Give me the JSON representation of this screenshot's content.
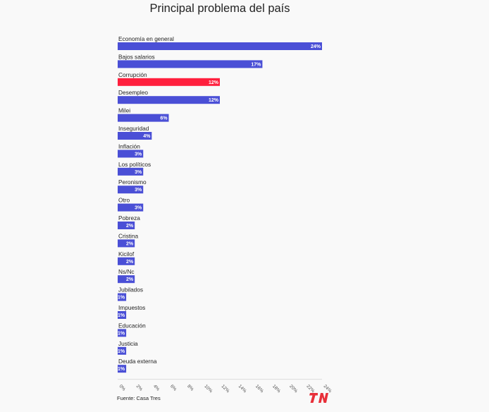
{
  "title": "Principal problema del país",
  "source": "Fuente: Casa Tres",
  "logo_text": "TN",
  "colors": {
    "default_bar": "#4a4fd6",
    "highlight_bar": "#ff1f3d",
    "logo": "#e8303a"
  },
  "chart_data": {
    "type": "bar",
    "orientation": "horizontal",
    "title": "Principal problema del país",
    "categories": [
      "Economía en general",
      "Bajos salarios",
      "Corrupción",
      "Desempleo",
      "Milei",
      "Inseguridad",
      "Inflación",
      "Los políticos",
      "Peronismo",
      "Otro",
      "Pobreza",
      "Cristina",
      "Kicilof",
      "Ns/Nc",
      "Jubilados",
      "Impuestos",
      "Educación",
      "Justicia",
      "Deuda externa"
    ],
    "values": [
      24,
      17,
      12,
      12,
      6,
      4,
      3,
      3,
      3,
      3,
      2,
      2,
      2,
      2,
      1,
      1,
      1,
      1,
      1
    ],
    "value_labels": [
      "24%",
      "17%",
      "12%",
      "12%",
      "6%",
      "4%",
      "3%",
      "3%",
      "3%",
      "3%",
      "2%",
      "2%",
      "2%",
      "2%",
      "1%",
      "1%",
      "1%",
      "1%",
      "1%"
    ],
    "highlight_index": 2,
    "xlim": [
      0,
      24
    ],
    "x_ticks": [
      0,
      2,
      4,
      6,
      8,
      10,
      12,
      14,
      16,
      18,
      20,
      22,
      24
    ],
    "x_tick_labels": [
      "0%",
      "2%",
      "4%",
      "6%",
      "8%",
      "10%",
      "12%",
      "14%",
      "16%",
      "18%",
      "20%",
      "22%",
      "24%"
    ],
    "grid": false,
    "legend": "none"
  }
}
